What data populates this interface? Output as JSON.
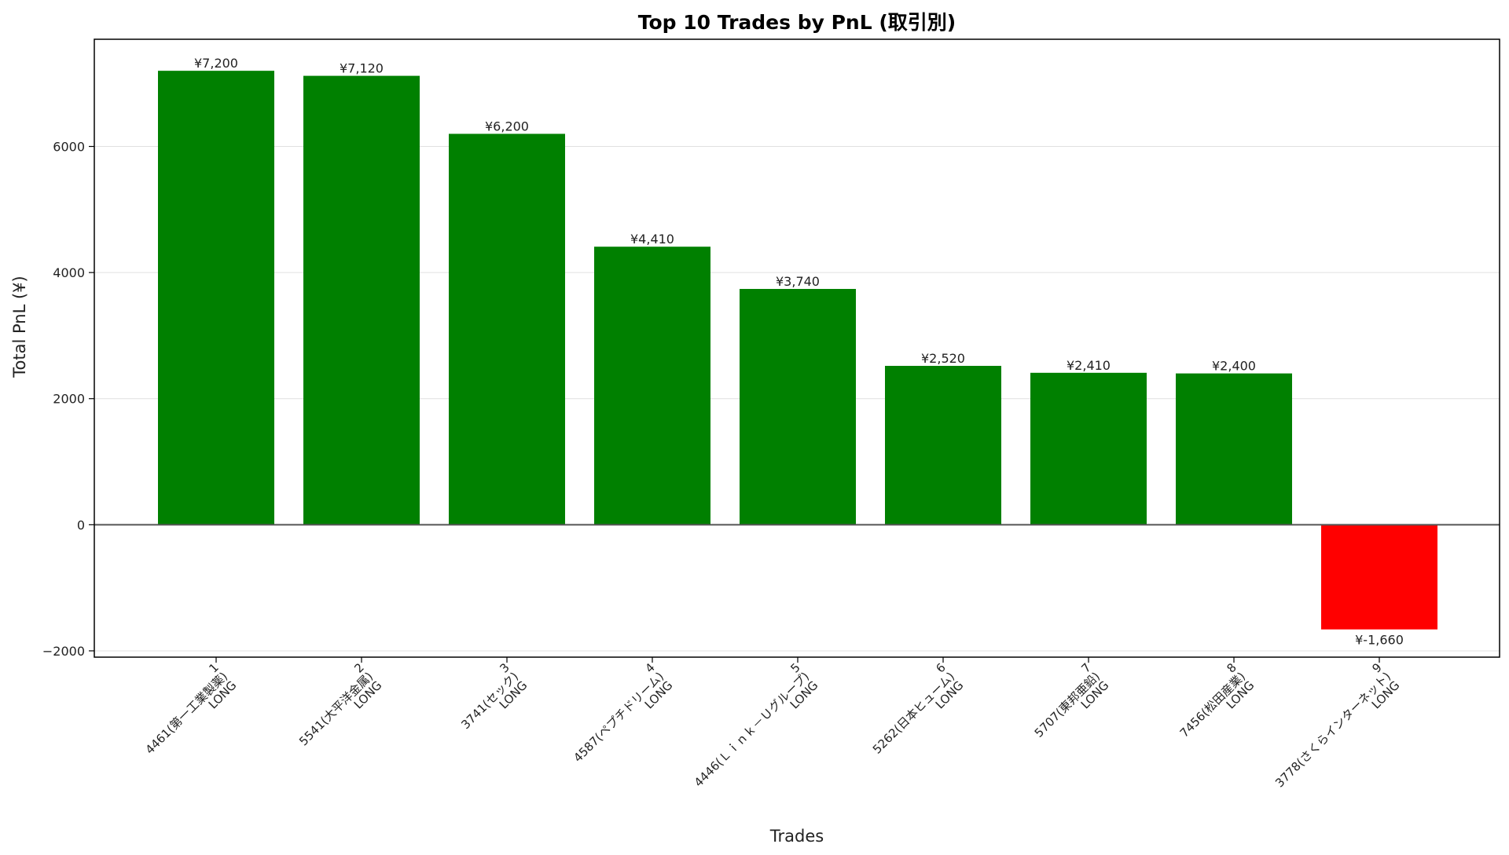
{
  "chart_data": {
    "type": "bar",
    "title": "Top 10 Trades by PnL (取引別)",
    "xlabel": "Trades",
    "ylabel": "Total PnL (¥)",
    "ylim": [
      -2100,
      7700
    ],
    "yticks": [
      -2000,
      0,
      2000,
      4000,
      6000
    ],
    "ytick_labels": [
      "−2000",
      "0",
      "2000",
      "4000",
      "6000"
    ],
    "grid": true,
    "legend": "none",
    "colors": {
      "positive": "#008000",
      "negative": "#ff0000"
    },
    "categories": [
      [
        "1",
        "4461(第一工業製薬)",
        "LONG"
      ],
      [
        "2",
        "5541(大平洋金属)",
        "LONG"
      ],
      [
        "3",
        "3741(セック)",
        "LONG"
      ],
      [
        "4",
        "4587(ペプチドリーム)",
        "LONG"
      ],
      [
        "5",
        "4446(Ｌｉｎｋ－Ｕグループ)",
        "LONG"
      ],
      [
        "6",
        "5262(日本ヒューム)",
        "LONG"
      ],
      [
        "7",
        "5707(東邦亜鉛)",
        "LONG"
      ],
      [
        "8",
        "7456(松田産業)",
        "LONG"
      ],
      [
        "9",
        "3778(さくらインターネット)",
        "LONG"
      ]
    ],
    "values": [
      7200,
      7120,
      6200,
      4410,
      3740,
      2520,
      2410,
      2400,
      -1660
    ],
    "data_labels": [
      "¥7,200",
      "¥7,120",
      "¥6,200",
      "¥4,410",
      "¥3,740",
      "¥2,520",
      "¥2,410",
      "¥2,400",
      "¥-1,660"
    ]
  }
}
